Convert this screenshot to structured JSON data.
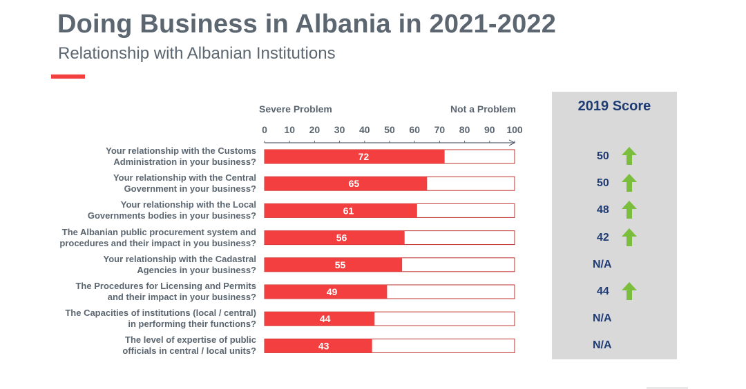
{
  "header": {
    "title": "Doing Business in Albania in 2021-2022",
    "subtitle": "Relationship with Albanian Institutions"
  },
  "colors": {
    "bar": "#f33f3f",
    "bar_border": "#c0302e",
    "accent": "#f33f3f",
    "text": "#5b6670",
    "score_text": "#1f3b73",
    "arrow": "#7bbd3c",
    "panel": "#d9d9d9"
  },
  "scale": {
    "left_label": "Severe Problem",
    "right_label": "Not a Problem"
  },
  "score_panel": {
    "title": "2019 Score"
  },
  "chart_data": {
    "type": "bar",
    "orientation": "horizontal",
    "xlim": [
      0,
      100
    ],
    "ticks": [
      0,
      10,
      20,
      30,
      40,
      50,
      60,
      70,
      80,
      90,
      100
    ],
    "categories": [
      [
        "Your relationship with the Customs",
        "Administration in your business?"
      ],
      [
        "Your relationship with the Central",
        "Government in your business?"
      ],
      [
        "Your relationship with the Local",
        "Governments bodies in your business?"
      ],
      [
        "The Albanian public procurement system and",
        "procedures and their impact in you business?"
      ],
      [
        "Your relationship with the Cadastral",
        "Agencies in your business?"
      ],
      [
        "The Procedures for Licensing and Permits",
        "and their impact in your business?"
      ],
      [
        "The Capacities of institutions (local / central)",
        "in performing their functions?"
      ],
      [
        "The level of expertise of public",
        "officials in central / local units?"
      ]
    ],
    "values": [
      72,
      65,
      61,
      56,
      55,
      49,
      44,
      43
    ],
    "score_2019": [
      {
        "value": "50",
        "arrow": "up-arrow-icon"
      },
      {
        "value": "50",
        "arrow": "up-arrow-icon"
      },
      {
        "value": "48",
        "arrow": "up-arrow-icon"
      },
      {
        "value": "42",
        "arrow": "up-arrow-icon"
      },
      {
        "value": "N/A",
        "arrow": null
      },
      {
        "value": "44",
        "arrow": "up-arrow-icon"
      },
      {
        "value": "N/A",
        "arrow": null
      },
      {
        "value": "N/A",
        "arrow": null
      }
    ]
  }
}
